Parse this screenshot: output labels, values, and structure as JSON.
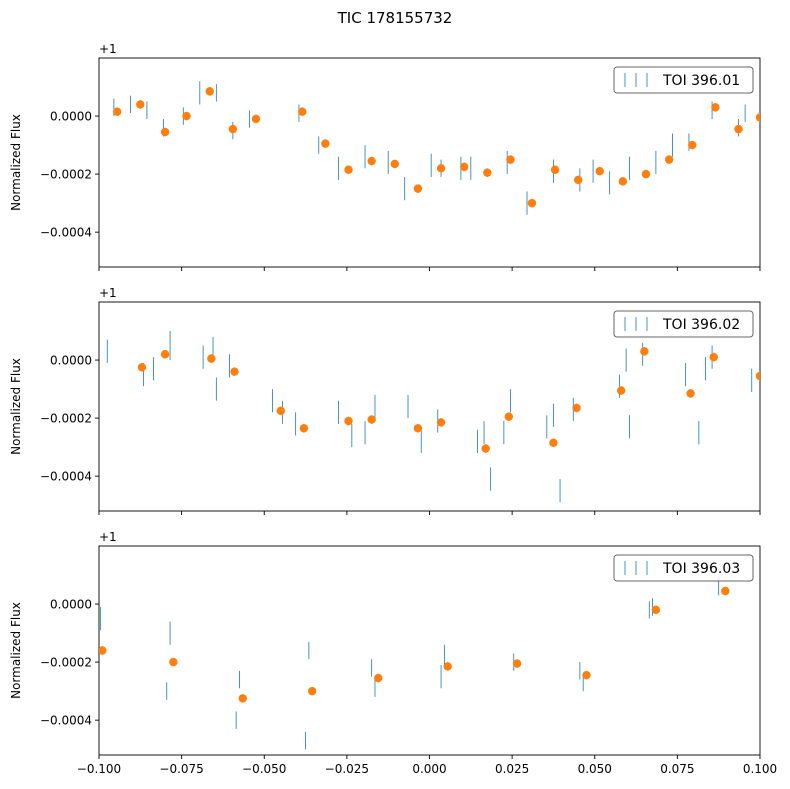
{
  "title": "TIC 178155732",
  "chart_data": [
    {
      "type": "scatter",
      "panel_label": "+1",
      "ylabel": "Normalized Flux",
      "xlim": [
        -0.1,
        0.1
      ],
      "ylim": [
        -0.00052,
        0.0002
      ],
      "yticks": [
        0.0,
        -0.0002,
        -0.0004
      ],
      "ytick_labels": [
        "0.0000",
        "−0.0002",
        "−0.0004"
      ],
      "xtick_labels_shown": false,
      "legend": {
        "label": "TOI 396.01",
        "position": "top-right"
      },
      "series": [
        {
          "name": "raw",
          "color": "#1f77b4",
          "points": [
            {
              "x": -0.0955,
              "y": 3e-05,
              "err": 3e-05
            },
            {
              "x": -0.0905,
              "y": 4e-05,
              "err": 3e-05
            },
            {
              "x": -0.0855,
              "y": 2e-05,
              "err": 3e-05
            },
            {
              "x": -0.0805,
              "y": -4e-05,
              "err": 3e-05
            },
            {
              "x": -0.0745,
              "y": 0.0,
              "err": 3e-05
            },
            {
              "x": -0.0695,
              "y": 8e-05,
              "err": 4e-05
            },
            {
              "x": -0.0645,
              "y": 8e-05,
              "err": 3e-05
            },
            {
              "x": -0.0595,
              "y": -5e-05,
              "err": 3e-05
            },
            {
              "x": -0.0545,
              "y": -1e-05,
              "err": 3e-05
            },
            {
              "x": -0.0395,
              "y": 1e-05,
              "err": 3e-05
            },
            {
              "x": -0.0335,
              "y": -0.0001,
              "err": 3e-05
            },
            {
              "x": -0.0275,
              "y": -0.00018,
              "err": 4e-05
            },
            {
              "x": -0.0195,
              "y": -0.00014,
              "err": 4e-05
            },
            {
              "x": -0.0125,
              "y": -0.00016,
              "err": 4e-05
            },
            {
              "x": -0.0075,
              "y": -0.00025,
              "err": 4e-05
            },
            {
              "x": 0.0005,
              "y": -0.00017,
              "err": 4e-05
            },
            {
              "x": 0.0035,
              "y": -0.00018,
              "err": 3e-05
            },
            {
              "x": 0.0095,
              "y": -0.00018,
              "err": 4e-05
            },
            {
              "x": 0.0125,
              "y": -0.00018,
              "err": 4e-05
            },
            {
              "x": 0.0235,
              "y": -0.00016,
              "err": 4e-05
            },
            {
              "x": 0.0295,
              "y": -0.0003,
              "err": 4e-05
            },
            {
              "x": 0.0375,
              "y": -0.00019,
              "err": 4e-05
            },
            {
              "x": 0.0455,
              "y": -0.00022,
              "err": 4e-05
            },
            {
              "x": 0.0495,
              "y": -0.00019,
              "err": 4e-05
            },
            {
              "x": 0.0545,
              "y": -0.00023,
              "err": 4e-05
            },
            {
              "x": 0.0605,
              "y": -0.00018,
              "err": 4e-05
            },
            {
              "x": 0.0685,
              "y": -0.00016,
              "err": 4e-05
            },
            {
              "x": 0.0735,
              "y": -0.0001,
              "err": 4e-05
            },
            {
              "x": 0.0785,
              "y": -9e-05,
              "err": 3e-05
            },
            {
              "x": 0.0855,
              "y": 2e-05,
              "err": 3e-05
            },
            {
              "x": 0.0935,
              "y": -4e-05,
              "err": 3e-05
            },
            {
              "x": 0.0955,
              "y": 1e-05,
              "err": 3e-05
            }
          ]
        },
        {
          "name": "binned",
          "color": "#ff7f0e",
          "points": [
            {
              "x": -0.0945,
              "y": 1.5e-05,
              "err": 3e-05
            },
            {
              "x": -0.0875,
              "y": 4e-05,
              "err": 3e-05
            },
            {
              "x": -0.08,
              "y": -5.5e-05,
              "err": 3e-05
            },
            {
              "x": -0.0735,
              "y": 0.0,
              "err": 3e-05
            },
            {
              "x": -0.0665,
              "y": 8.5e-05,
              "err": 3e-05
            },
            {
              "x": -0.0595,
              "y": -4.5e-05,
              "err": 3e-05
            },
            {
              "x": -0.0525,
              "y": -1e-05,
              "err": 3e-05
            },
            {
              "x": -0.0385,
              "y": 1.5e-05,
              "err": 3e-05
            },
            {
              "x": -0.0315,
              "y": -9.5e-05,
              "err": 3e-05
            },
            {
              "x": -0.0245,
              "y": -0.000185,
              "err": 3e-05
            },
            {
              "x": -0.0175,
              "y": -0.000155,
              "err": 3e-05
            },
            {
              "x": -0.0105,
              "y": -0.000165,
              "err": 3e-05
            },
            {
              "x": -0.0035,
              "y": -0.00025,
              "err": 3e-05
            },
            {
              "x": 0.0035,
              "y": -0.00018,
              "err": 3e-05
            },
            {
              "x": 0.0105,
              "y": -0.000175,
              "err": 3e-05
            },
            {
              "x": 0.0175,
              "y": -0.000195,
              "err": 3e-05
            },
            {
              "x": 0.0245,
              "y": -0.00015,
              "err": 3e-05
            },
            {
              "x": 0.031,
              "y": -0.0003,
              "err": 3e-05
            },
            {
              "x": 0.038,
              "y": -0.000185,
              "err": 3e-05
            },
            {
              "x": 0.045,
              "y": -0.00022,
              "err": 3e-05
            },
            {
              "x": 0.0515,
              "y": -0.00019,
              "err": 3e-05
            },
            {
              "x": 0.0585,
              "y": -0.000225,
              "err": 3e-05
            },
            {
              "x": 0.0655,
              "y": -0.0002,
              "err": 3e-05
            },
            {
              "x": 0.0725,
              "y": -0.00015,
              "err": 3e-05
            },
            {
              "x": 0.0795,
              "y": -0.0001,
              "err": 3e-05
            },
            {
              "x": 0.0865,
              "y": 3e-05,
              "err": 3e-05
            },
            {
              "x": 0.0935,
              "y": -4.5e-05,
              "err": 3e-05
            },
            {
              "x": 0.1,
              "y": -5e-06,
              "err": 3e-05
            }
          ]
        }
      ]
    },
    {
      "type": "scatter",
      "panel_label": "+1",
      "ylabel": "Normalized Flux",
      "xlim": [
        -0.1,
        0.1
      ],
      "ylim": [
        -0.00052,
        0.0002
      ],
      "yticks": [
        0.0,
        -0.0002,
        -0.0004
      ],
      "ytick_labels": [
        "0.0000",
        "−0.0002",
        "−0.0004"
      ],
      "xtick_labels_shown": false,
      "legend": {
        "label": "TOI 396.02",
        "position": "top-right"
      },
      "series": [
        {
          "name": "raw",
          "color": "#1f77b4",
          "points": [
            {
              "x": -0.0975,
              "y": 3e-05,
              "err": 4e-05
            },
            {
              "x": -0.0865,
              "y": -5e-05,
              "err": 4e-05
            },
            {
              "x": -0.0835,
              "y": -3e-05,
              "err": 4e-05
            },
            {
              "x": -0.0785,
              "y": 5e-05,
              "err": 5e-05
            },
            {
              "x": -0.0685,
              "y": 1e-05,
              "err": 4e-05
            },
            {
              "x": -0.0655,
              "y": 4e-05,
              "err": 4e-05
            },
            {
              "x": -0.0645,
              "y": -0.0001,
              "err": 4e-05
            },
            {
              "x": -0.0605,
              "y": -2e-05,
              "err": 4e-05
            },
            {
              "x": -0.0475,
              "y": -0.00014,
              "err": 4e-05
            },
            {
              "x": -0.0445,
              "y": -0.00018,
              "err": 4e-05
            },
            {
              "x": -0.0405,
              "y": -0.00022,
              "err": 4e-05
            },
            {
              "x": -0.0275,
              "y": -0.00018,
              "err": 4e-05
            },
            {
              "x": -0.0235,
              "y": -0.00026,
              "err": 4e-05
            },
            {
              "x": -0.0195,
              "y": -0.00025,
              "err": 4e-05
            },
            {
              "x": -0.0165,
              "y": -0.00016,
              "err": 4e-05
            },
            {
              "x": -0.0065,
              "y": -0.00016,
              "err": 4e-05
            },
            {
              "x": -0.0025,
              "y": -0.00028,
              "err": 4e-05
            },
            {
              "x": 0.0025,
              "y": -0.00021,
              "err": 4e-05
            },
            {
              "x": 0.0145,
              "y": -0.00028,
              "err": 4e-05
            },
            {
              "x": 0.0165,
              "y": -0.00025,
              "err": 4e-05
            },
            {
              "x": 0.0185,
              "y": -0.00041,
              "err": 4e-05
            },
            {
              "x": 0.0225,
              "y": -0.00025,
              "err": 4e-05
            },
            {
              "x": 0.0245,
              "y": -0.00014,
              "err": 4e-05
            },
            {
              "x": 0.0355,
              "y": -0.00023,
              "err": 4e-05
            },
            {
              "x": 0.0375,
              "y": -0.00019,
              "err": 4e-05
            },
            {
              "x": 0.0395,
              "y": -0.00045,
              "err": 4e-05
            },
            {
              "x": 0.0435,
              "y": -0.00017,
              "err": 4e-05
            },
            {
              "x": 0.0575,
              "y": -9e-05,
              "err": 4e-05
            },
            {
              "x": 0.0595,
              "y": 0.0,
              "err": 4e-05
            },
            {
              "x": 0.0605,
              "y": -0.00023,
              "err": 4e-05
            },
            {
              "x": 0.0645,
              "y": 2e-05,
              "err": 4e-05
            },
            {
              "x": 0.0775,
              "y": -5e-05,
              "err": 4e-05
            },
            {
              "x": 0.0815,
              "y": -0.00025,
              "err": 4e-05
            },
            {
              "x": 0.0835,
              "y": -3e-05,
              "err": 4e-05
            },
            {
              "x": 0.0855,
              "y": 1e-05,
              "err": 4e-05
            },
            {
              "x": 0.0975,
              "y": -7e-05,
              "err": 4e-05
            }
          ]
        },
        {
          "name": "binned",
          "color": "#ff7f0e",
          "points": [
            {
              "x": -0.087,
              "y": -2.5e-05,
              "err": 3e-05
            },
            {
              "x": -0.08,
              "y": 2e-05,
              "err": 3e-05
            },
            {
              "x": -0.066,
              "y": 5e-06,
              "err": 3e-05
            },
            {
              "x": -0.059,
              "y": -4e-05,
              "err": 3e-05
            },
            {
              "x": -0.045,
              "y": -0.000175,
              "err": 3e-05
            },
            {
              "x": -0.038,
              "y": -0.000235,
              "err": 3e-05
            },
            {
              "x": -0.0245,
              "y": -0.00021,
              "err": 3e-05
            },
            {
              "x": -0.0175,
              "y": -0.000205,
              "err": 3e-05
            },
            {
              "x": -0.0035,
              "y": -0.000235,
              "err": 3e-05
            },
            {
              "x": 0.0035,
              "y": -0.000215,
              "err": 3e-05
            },
            {
              "x": 0.017,
              "y": -0.000305,
              "err": 3e-05
            },
            {
              "x": 0.024,
              "y": -0.000195,
              "err": 3e-05
            },
            {
              "x": 0.0375,
              "y": -0.000285,
              "err": 3e-05
            },
            {
              "x": 0.0445,
              "y": -0.000165,
              "err": 3e-05
            },
            {
              "x": 0.058,
              "y": -0.000105,
              "err": 3e-05
            },
            {
              "x": 0.065,
              "y": 3e-05,
              "err": 3e-05
            },
            {
              "x": 0.079,
              "y": -0.000115,
              "err": 3e-05
            },
            {
              "x": 0.086,
              "y": 1e-05,
              "err": 3e-05
            },
            {
              "x": 0.1,
              "y": -5.5e-05,
              "err": 3e-05
            }
          ]
        }
      ]
    },
    {
      "type": "scatter",
      "panel_label": "+1",
      "ylabel": "Normalized Flux",
      "xlim": [
        -0.1,
        0.1
      ],
      "ylim": [
        -0.00052,
        0.0002
      ],
      "yticks": [
        0.0,
        -0.0002,
        -0.0004
      ],
      "ytick_labels": [
        "0.0000",
        "−0.0002",
        "−0.0004"
      ],
      "xticks": [
        -0.1,
        -0.075,
        -0.05,
        -0.025,
        0.0,
        0.025,
        0.05,
        0.075,
        0.1
      ],
      "xtick_labels": [
        "−0.100",
        "−0.075",
        "−0.050",
        "−0.025",
        "0.000",
        "0.025",
        "0.050",
        "0.075",
        "0.100"
      ],
      "xtick_labels_shown": true,
      "legend": {
        "label": "TOI 396.03",
        "position": "top-right"
      },
      "series": [
        {
          "name": "raw",
          "color": "#1f77b4",
          "points": [
            {
              "x": -0.0995,
              "y": -5e-05,
              "err": 4e-05
            },
            {
              "x": -0.0785,
              "y": -0.0001,
              "err": 4e-05
            },
            {
              "x": -0.0795,
              "y": -0.0003,
              "err": 3e-05
            },
            {
              "x": -0.0585,
              "y": -0.0004,
              "err": 3e-05
            },
            {
              "x": -0.0575,
              "y": -0.00026,
              "err": 3e-05
            },
            {
              "x": -0.0375,
              "y": -0.00047,
              "err": 3e-05
            },
            {
              "x": -0.0365,
              "y": -0.00016,
              "err": 3e-05
            },
            {
              "x": -0.0165,
              "y": -0.00029,
              "err": 3e-05
            },
            {
              "x": -0.0175,
              "y": -0.00022,
              "err": 3e-05
            },
            {
              "x": 0.0035,
              "y": -0.00025,
              "err": 4e-05
            },
            {
              "x": 0.0045,
              "y": -0.00018,
              "err": 4e-05
            },
            {
              "x": 0.0255,
              "y": -0.0002,
              "err": 3e-05
            },
            {
              "x": 0.0455,
              "y": -0.00023,
              "err": 3e-05
            },
            {
              "x": 0.0465,
              "y": -0.00027,
              "err": 3e-05
            },
            {
              "x": 0.0665,
              "y": -2e-05,
              "err": 3e-05
            },
            {
              "x": 0.0675,
              "y": -1e-05,
              "err": 3e-05
            },
            {
              "x": 0.0875,
              "y": 6e-05,
              "err": 3e-05
            }
          ]
        },
        {
          "name": "binned",
          "color": "#ff7f0e",
          "points": [
            {
              "x": -0.099,
              "y": -0.00016,
              "err": 3e-05
            },
            {
              "x": -0.0775,
              "y": -0.0002,
              "err": 3e-05
            },
            {
              "x": -0.0565,
              "y": -0.000325,
              "err": 3e-05
            },
            {
              "x": -0.0355,
              "y": -0.0003,
              "err": 3e-05
            },
            {
              "x": -0.0155,
              "y": -0.000255,
              "err": 3e-05
            },
            {
              "x": 0.0055,
              "y": -0.000215,
              "err": 3e-05
            },
            {
              "x": 0.0265,
              "y": -0.000205,
              "err": 3e-05
            },
            {
              "x": 0.0475,
              "y": -0.000245,
              "err": 3e-05
            },
            {
              "x": 0.0685,
              "y": -2e-05,
              "err": 3e-05
            },
            {
              "x": 0.0895,
              "y": 4.5e-05,
              "err": 3e-05
            }
          ]
        }
      ]
    }
  ]
}
